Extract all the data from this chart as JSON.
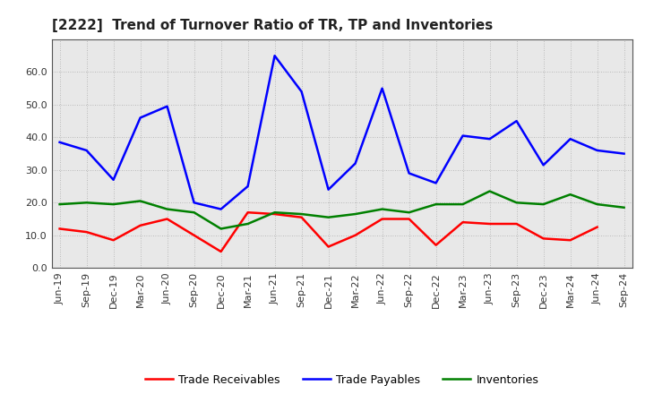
{
  "title": "[2222]  Trend of Turnover Ratio of TR, TP and Inventories",
  "ylim": [
    0.0,
    70.0
  ],
  "yticks": [
    0.0,
    10.0,
    20.0,
    30.0,
    40.0,
    50.0,
    60.0
  ],
  "x_labels": [
    "Jun-19",
    "Sep-19",
    "Dec-19",
    "Mar-20",
    "Jun-20",
    "Sep-20",
    "Dec-20",
    "Mar-21",
    "Jun-21",
    "Sep-21",
    "Dec-21",
    "Mar-22",
    "Jun-22",
    "Sep-22",
    "Dec-22",
    "Mar-23",
    "Jun-23",
    "Sep-23",
    "Dec-23",
    "Mar-24",
    "Jun-24",
    "Sep-24"
  ],
  "trade_receivables": [
    12.0,
    11.0,
    8.5,
    13.0,
    15.0,
    10.0,
    5.0,
    17.0,
    16.5,
    15.5,
    6.5,
    10.0,
    15.0,
    15.0,
    7.0,
    14.0,
    13.5,
    13.5,
    9.0,
    8.5,
    12.5,
    null
  ],
  "trade_payables": [
    38.5,
    36.0,
    27.0,
    46.0,
    49.5,
    20.0,
    18.0,
    25.0,
    65.0,
    54.0,
    24.0,
    32.0,
    55.0,
    29.0,
    26.0,
    40.5,
    39.5,
    45.0,
    31.5,
    39.5,
    36.0,
    35.0
  ],
  "inventories": [
    19.5,
    20.0,
    19.5,
    20.5,
    18.0,
    17.0,
    12.0,
    13.5,
    17.0,
    16.5,
    15.5,
    16.5,
    18.0,
    17.0,
    19.5,
    19.5,
    23.5,
    20.0,
    19.5,
    22.5,
    19.5,
    18.5
  ],
  "colors": {
    "trade_receivables": "#ff0000",
    "trade_payables": "#0000ff",
    "inventories": "#008000"
  },
  "legend_labels": [
    "Trade Receivables",
    "Trade Payables",
    "Inventories"
  ],
  "background_color": "#ffffff",
  "plot_bg_color": "#e8e8e8",
  "grid_color": "#aaaaaa",
  "line_width": 1.8,
  "title_fontsize": 11,
  "tick_fontsize": 8,
  "legend_fontsize": 9
}
